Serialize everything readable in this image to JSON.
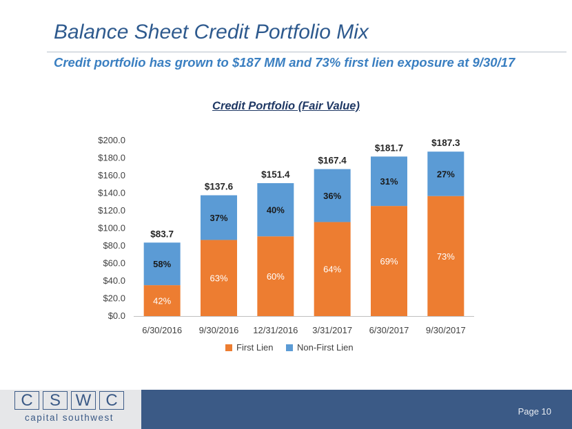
{
  "slide": {
    "title": "Balance Sheet Credit Portfolio Mix",
    "subtitle": "Credit portfolio has grown to $187 MM and 73% first lien exposure at 9/30/17",
    "page_label": "Page 10"
  },
  "logo": {
    "letters": [
      "C",
      "S",
      "W",
      "C"
    ],
    "tagline": "capital southwest"
  },
  "chart_data": {
    "type": "bar",
    "stacked": true,
    "title": "Credit Portfolio (Fair Value)",
    "categories": [
      "6/30/2016",
      "9/30/2016",
      "12/31/2016",
      "3/31/2017",
      "6/30/2017",
      "9/30/2017"
    ],
    "totals": [
      83.7,
      137.6,
      151.4,
      167.4,
      181.7,
      187.3
    ],
    "total_labels": [
      "$83.7",
      "$137.6",
      "$151.4",
      "$167.4",
      "$181.7",
      "$187.3"
    ],
    "series": [
      {
        "name": "First Lien",
        "color": "#ed7d31",
        "values": [
          35.2,
          86.7,
          90.8,
          107.1,
          125.4,
          136.7
        ],
        "percent_labels": [
          "42%",
          "63%",
          "60%",
          "64%",
          "69%",
          "73%"
        ]
      },
      {
        "name": "Non-First Lien",
        "color": "#5b9bd5",
        "values": [
          48.5,
          50.9,
          60.6,
          60.3,
          56.3,
          50.6
        ],
        "percent_labels": [
          "58%",
          "37%",
          "40%",
          "36%",
          "31%",
          "27%"
        ]
      }
    ],
    "yticks": [
      "$0.0",
      "$20.0",
      "$40.0",
      "$60.0",
      "$80.0",
      "$100.0",
      "$120.0",
      "$140.0",
      "$160.0",
      "$180.0",
      "$200.0"
    ],
    "ylim": [
      0,
      200
    ],
    "grid": false,
    "legend_position": "bottom"
  }
}
